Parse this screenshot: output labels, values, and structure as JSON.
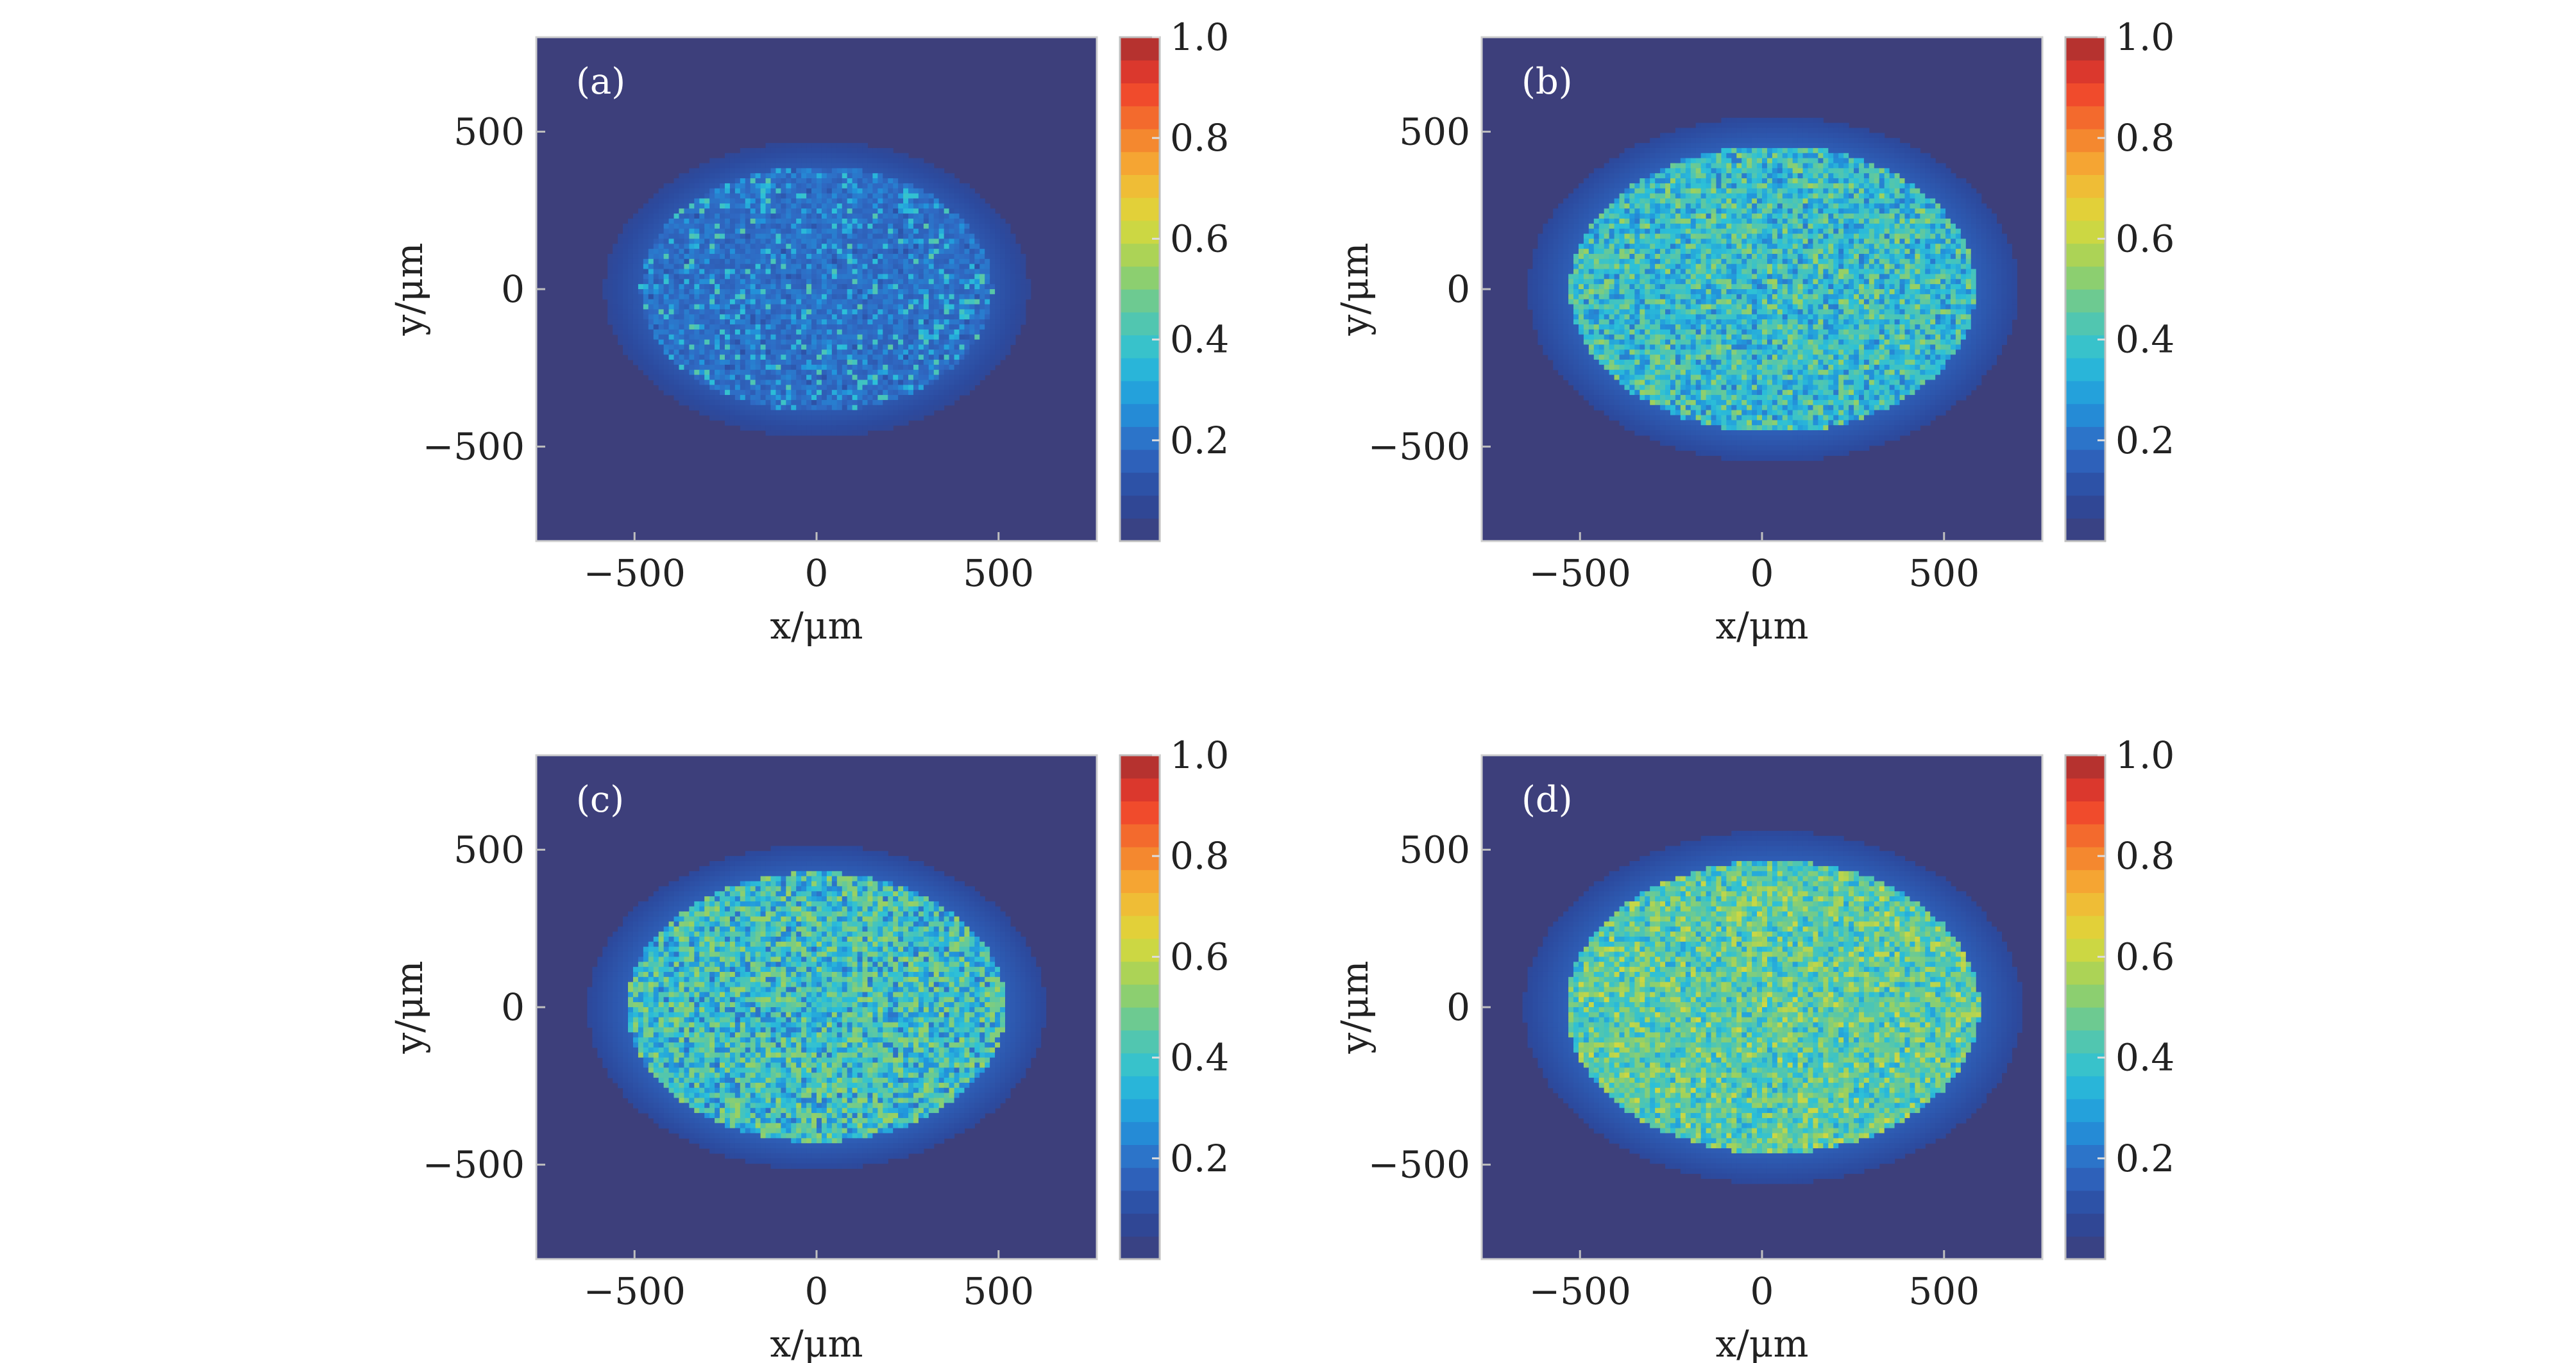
{
  "chart_data": [
    {
      "type": "heatmap",
      "panel_label": "(a)",
      "xlabel": "x/μm",
      "ylabel": "y/μm",
      "xlim": [
        -770,
        770
      ],
      "ylim": [
        -800,
        800
      ],
      "xticks": [
        -500,
        0,
        500
      ],
      "xtick_labels": [
        "−500",
        "0",
        "500"
      ],
      "yticks": [
        500,
        0,
        -500
      ],
      "ytick_labels": [
        "500",
        "0",
        "−500"
      ],
      "colorbar": {
        "range": [
          0,
          1.0
        ],
        "ticks": [
          1.0,
          0.8,
          0.6,
          0.4,
          0.2
        ],
        "tick_labels": [
          "1.0",
          "0.8",
          "0.6",
          "0.4",
          "0.2"
        ],
        "colormap": "jet"
      },
      "background_value": 0.0,
      "spot": {
        "shape": "ellipse",
        "center": [
          0,
          0
        ],
        "x_radius": 520,
        "y_radius": 420,
        "halo_level": 0.13,
        "mean_level": 0.2,
        "peak_level": 0.45
      },
      "speckle": "fine"
    },
    {
      "type": "heatmap",
      "panel_label": "(b)",
      "xlabel": "x/μm",
      "ylabel": "y/μm",
      "xlim": [
        -770,
        770
      ],
      "ylim": [
        -800,
        800
      ],
      "xticks": [
        -500,
        0,
        500
      ],
      "xtick_labels": [
        "−500",
        "0",
        "500"
      ],
      "yticks": [
        500,
        0,
        -500
      ],
      "ytick_labels": [
        "500",
        "0",
        "−500"
      ],
      "colorbar": {
        "range": [
          0,
          1.0
        ],
        "ticks": [
          1.0,
          0.8,
          0.6,
          0.4,
          0.2
        ],
        "tick_labels": [
          "1.0",
          "0.8",
          "0.6",
          "0.4",
          "0.2"
        ],
        "colormap": "jet"
      },
      "background_value": 0.0,
      "spot": {
        "shape": "ellipse",
        "center": [
          30,
          0
        ],
        "x_radius": 600,
        "y_radius": 490,
        "halo_level": 0.15,
        "mean_level": 0.3,
        "peak_level": 0.55
      },
      "speckle": "streaky"
    },
    {
      "type": "heatmap",
      "panel_label": "(c)",
      "xlabel": "x/μm",
      "ylabel": "y/μm",
      "xlim": [
        -770,
        770
      ],
      "ylim": [
        -800,
        800
      ],
      "xticks": [
        -500,
        0,
        500
      ],
      "xtick_labels": [
        "−500",
        "0",
        "500"
      ],
      "yticks": [
        500,
        0,
        -500
      ],
      "ytick_labels": [
        "500",
        "0",
        "−500"
      ],
      "colorbar": {
        "range": [
          0,
          1.0
        ],
        "ticks": [
          1.0,
          0.8,
          0.6,
          0.4,
          0.2
        ],
        "tick_labels": [
          "1.0",
          "0.8",
          "0.6",
          "0.4",
          "0.2"
        ],
        "colormap": "jet"
      },
      "background_value": 0.0,
      "spot": {
        "shape": "ellipse",
        "center": [
          0,
          0
        ],
        "x_radius": 560,
        "y_radius": 460,
        "halo_level": 0.15,
        "mean_level": 0.28,
        "peak_level": 0.55
      },
      "speckle": "blobby"
    },
    {
      "type": "heatmap",
      "panel_label": "(d)",
      "xlabel": "x/μm",
      "ylabel": "y/μm",
      "xlim": [
        -770,
        770
      ],
      "ylim": [
        -800,
        800
      ],
      "xticks": [
        -500,
        0,
        500
      ],
      "xtick_labels": [
        "−500",
        "0",
        "500"
      ],
      "yticks": [
        500,
        0,
        -500
      ],
      "ytick_labels": [
        "500",
        "0",
        "−500"
      ],
      "colorbar": {
        "range": [
          0,
          1.0
        ],
        "ticks": [
          1.0,
          0.8,
          0.6,
          0.4,
          0.2
        ],
        "tick_labels": [
          "1.0",
          "0.8",
          "0.6",
          "0.4",
          "0.2"
        ],
        "colormap": "jet"
      },
      "background_value": 0.0,
      "spot": {
        "shape": "ellipse",
        "center": [
          30,
          0
        ],
        "x_radius": 610,
        "y_radius": 500,
        "halo_level": 0.15,
        "mean_level": 0.38,
        "peak_level": 0.62
      },
      "speckle": "streaky"
    }
  ],
  "colors": {
    "background": "#40407d",
    "colormap_stops": [
      "#3d3f7b",
      "#2c4a9e",
      "#2f69c3",
      "#2196dc",
      "#2cc0d8",
      "#5dc8a2",
      "#9cd15f",
      "#dcd93a",
      "#f5b335",
      "#f47a2d",
      "#ee3b2c",
      "#a32f30"
    ]
  }
}
